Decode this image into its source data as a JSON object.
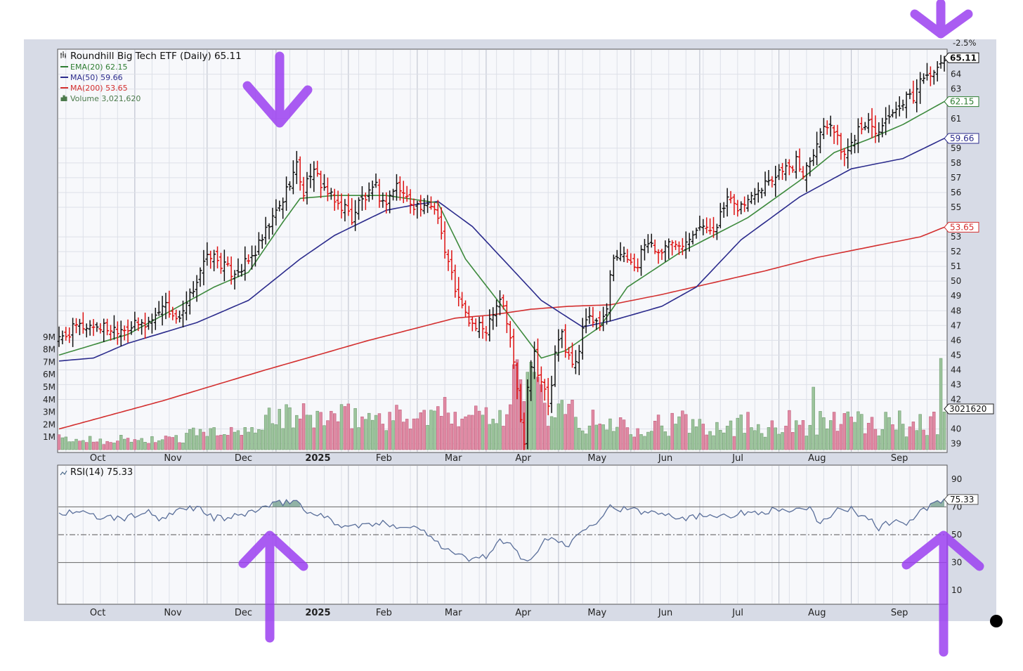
{
  "chart_data": [
    {
      "type": "ohlc",
      "title": "Roundhill Big Tech ETF (Daily) 65.11",
      "legend": [
        {
          "name": "EMA(20)",
          "value": "62.15",
          "color": "#2e7d32"
        },
        {
          "name": "MA(50)",
          "value": "59.66",
          "color": "#2b2b8c"
        },
        {
          "name": "MA(200)",
          "value": "53.65",
          "color": "#d32f2f"
        },
        {
          "name": "Volume",
          "value": "3,021,620",
          "color": "#4c7a4c"
        }
      ],
      "pct_label": "-2.5%",
      "x_ticks": [
        "Oct",
        "Nov",
        "Dec",
        "2025",
        "Feb",
        "Mar",
        "Apr",
        "May",
        "Jun",
        "Jul",
        "Aug",
        "Sep"
      ],
      "y_ticks": [
        39,
        40,
        42,
        43,
        44,
        45,
        46,
        47,
        48,
        49,
        50,
        51,
        52,
        53,
        55,
        56,
        57,
        58,
        59,
        61,
        63,
        64
      ],
      "ylim": [
        38.6,
        65.6
      ],
      "volume_ticks": [
        "9M",
        "8M",
        "7M",
        "6M",
        "5M",
        "4M",
        "3M",
        "2M",
        "1M"
      ],
      "volume_max": 10000000,
      "last_labels": {
        "price": "65.11",
        "ema20": "62.15",
        "ma50": "59.66",
        "ma200": "53.65",
        "volume": "3021620"
      },
      "price_close": [
        [
          0,
          46.0
        ],
        [
          5,
          46.9
        ],
        [
          10,
          47.0
        ],
        [
          15,
          46.8
        ],
        [
          20,
          46.9
        ],
        [
          25,
          47.1
        ],
        [
          28,
          47.6
        ],
        [
          30,
          48.6
        ],
        [
          32,
          48.0
        ],
        [
          35,
          47.2
        ],
        [
          38,
          48.9
        ],
        [
          41,
          50.8
        ],
        [
          44,
          51.8
        ],
        [
          47,
          51.2
        ],
        [
          50,
          50.6
        ],
        [
          53,
          50.9
        ],
        [
          56,
          51.6
        ],
        [
          59,
          52.8
        ],
        [
          62,
          54.2
        ],
        [
          65,
          55.5
        ],
        [
          67,
          56.8
        ],
        [
          69,
          57.8
        ],
        [
          71,
          56.0
        ],
        [
          73,
          57.4
        ],
        [
          75,
          57.0
        ],
        [
          77,
          56.3
        ],
        [
          80,
          55.3
        ],
        [
          83,
          55.0
        ],
        [
          85,
          54.2
        ],
        [
          87,
          55.3
        ],
        [
          90,
          55.8
        ],
        [
          92,
          56.3
        ],
        [
          94,
          55.2
        ],
        [
          96,
          55.8
        ],
        [
          98,
          56.5
        ],
        [
          100,
          55.9
        ],
        [
          102,
          55.4
        ],
        [
          104,
          55.1
        ],
        [
          106,
          54.8
        ],
        [
          108,
          55.2
        ],
        [
          110,
          54.6
        ],
        [
          112,
          52.0
        ],
        [
          114,
          50.4
        ],
        [
          116,
          48.7
        ],
        [
          118,
          47.7
        ],
        [
          120,
          47.0
        ],
        [
          122,
          46.8
        ],
        [
          124,
          46.8
        ],
        [
          126,
          48.1
        ],
        [
          128,
          48.9
        ],
        [
          129,
          48.4
        ],
        [
          130,
          47.2
        ],
        [
          131,
          46.0
        ],
        [
          132,
          44.5
        ],
        [
          133,
          42.8
        ],
        [
          134,
          40.5
        ],
        [
          135,
          39.3
        ],
        [
          136,
          43.0
        ],
        [
          137,
          44.5
        ],
        [
          138,
          45.2
        ],
        [
          139,
          44.0
        ],
        [
          141,
          42.5
        ],
        [
          142,
          41.5
        ],
        [
          143,
          43.0
        ],
        [
          144,
          45.0
        ],
        [
          146,
          46.5
        ],
        [
          147,
          45.5
        ],
        [
          149,
          44.2
        ],
        [
          151,
          45.0
        ],
        [
          152,
          47.2
        ],
        [
          154,
          47.8
        ],
        [
          155,
          47.0
        ],
        [
          157,
          47.0
        ],
        [
          159,
          47.8
        ],
        [
          160,
          50.3
        ],
        [
          161,
          51.4
        ],
        [
          162,
          52.0
        ],
        [
          164,
          51.7
        ],
        [
          166,
          51.5
        ],
        [
          168,
          51.0
        ],
        [
          170,
          52.5
        ],
        [
          172,
          52.6
        ],
        [
          174,
          51.8
        ],
        [
          176,
          52.5
        ],
        [
          178,
          52.5
        ],
        [
          180,
          52.7
        ],
        [
          182,
          52.8
        ],
        [
          184,
          53.5
        ],
        [
          186,
          53.9
        ],
        [
          188,
          53.4
        ],
        [
          190,
          53.6
        ],
        [
          192,
          54.4
        ],
        [
          194,
          55.5
        ],
        [
          196,
          55.0
        ],
        [
          198,
          55.1
        ],
        [
          200,
          55.4
        ],
        [
          202,
          56.2
        ],
        [
          204,
          56.5
        ],
        [
          206,
          57.0
        ],
        [
          208,
          57.1
        ],
        [
          210,
          57.8
        ],
        [
          212,
          57.5
        ],
        [
          214,
          58.1
        ],
        [
          216,
          57.3
        ],
        [
          218,
          58.4
        ],
        [
          220,
          59.4
        ],
        [
          222,
          60.6
        ],
        [
          224,
          60.8
        ],
        [
          226,
          59.5
        ],
        [
          228,
          58.5
        ],
        [
          230,
          59.3
        ],
        [
          232,
          60.5
        ],
        [
          234,
          60.8
        ],
        [
          236,
          60.3
        ],
        [
          238,
          60.0
        ],
        [
          240,
          61.2
        ],
        [
          242,
          61.1
        ],
        [
          244,
          61.5
        ],
        [
          246,
          62.3
        ],
        [
          248,
          62.5
        ],
        [
          250,
          63.5
        ],
        [
          252,
          64.3
        ],
        [
          254,
          63.8
        ],
        [
          256,
          64.8
        ],
        [
          257,
          65.11
        ]
      ],
      "ema20": [
        [
          0,
          45.0
        ],
        [
          20,
          46.4
        ],
        [
          45,
          49.6
        ],
        [
          55,
          50.6
        ],
        [
          65,
          54.0
        ],
        [
          70,
          55.6
        ],
        [
          80,
          55.8
        ],
        [
          95,
          55.8
        ],
        [
          110,
          55.3
        ],
        [
          118,
          51.5
        ],
        [
          128,
          48.5
        ],
        [
          140,
          44.8
        ],
        [
          147,
          45.3
        ],
        [
          157,
          46.9
        ],
        [
          165,
          49.6
        ],
        [
          180,
          51.9
        ],
        [
          200,
          54.3
        ],
        [
          215,
          56.8
        ],
        [
          225,
          58.7
        ],
        [
          235,
          59.6
        ],
        [
          245,
          60.6
        ],
        [
          257,
          62.15
        ]
      ],
      "ma50": [
        [
          0,
          44.6
        ],
        [
          10,
          44.8
        ],
        [
          20,
          45.8
        ],
        [
          40,
          47.2
        ],
        [
          55,
          48.7
        ],
        [
          70,
          51.5
        ],
        [
          80,
          53.1
        ],
        [
          95,
          54.8
        ],
        [
          104,
          55.2
        ],
        [
          110,
          55.4
        ],
        [
          120,
          53.7
        ],
        [
          140,
          48.7
        ],
        [
          152,
          46.9
        ],
        [
          160,
          47.3
        ],
        [
          175,
          48.3
        ],
        [
          185,
          49.6
        ],
        [
          198,
          52.8
        ],
        [
          215,
          55.7
        ],
        [
          230,
          57.6
        ],
        [
          245,
          58.3
        ],
        [
          257,
          59.66
        ]
      ],
      "ma200": [
        [
          0,
          40.0
        ],
        [
          30,
          41.9
        ],
        [
          60,
          44.0
        ],
        [
          90,
          46.0
        ],
        [
          115,
          47.5
        ],
        [
          125,
          47.7
        ],
        [
          137,
          48.1
        ],
        [
          148,
          48.3
        ],
        [
          160,
          48.4
        ],
        [
          175,
          49.1
        ],
        [
          190,
          49.9
        ],
        [
          205,
          50.7
        ],
        [
          220,
          51.6
        ],
        [
          235,
          52.3
        ],
        [
          250,
          53.0
        ],
        [
          257,
          53.65
        ]
      ]
    },
    {
      "type": "line",
      "title": "RSI(14) 75.33",
      "y_ticks": [
        10,
        30,
        50,
        70,
        90
      ],
      "ylim": [
        0,
        100
      ],
      "reference_lines": [
        70,
        50,
        30
      ],
      "last_label": "75.33",
      "x_ticks": [
        "Oct",
        "Nov",
        "Dec",
        "2025",
        "Feb",
        "Mar",
        "Apr",
        "May",
        "Jun",
        "Jul",
        "Aug",
        "Sep"
      ],
      "values": [
        [
          0,
          65
        ],
        [
          5,
          67
        ],
        [
          10,
          63
        ],
        [
          15,
          62
        ],
        [
          20,
          62
        ],
        [
          25,
          67
        ],
        [
          30,
          60
        ],
        [
          35,
          68
        ],
        [
          40,
          70
        ],
        [
          45,
          62
        ],
        [
          50,
          62
        ],
        [
          55,
          66
        ],
        [
          60,
          70
        ],
        [
          65,
          73
        ],
        [
          69,
          75
        ],
        [
          72,
          65
        ],
        [
          75,
          66
        ],
        [
          80,
          58
        ],
        [
          85,
          56
        ],
        [
          90,
          57
        ],
        [
          95,
          58
        ],
        [
          100,
          56
        ],
        [
          104,
          55
        ],
        [
          108,
          50
        ],
        [
          112,
          40
        ],
        [
          116,
          35
        ],
        [
          120,
          32
        ],
        [
          124,
          35
        ],
        [
          128,
          45
        ],
        [
          131,
          42
        ],
        [
          134,
          35
        ],
        [
          136,
          30
        ],
        [
          140,
          43
        ],
        [
          143,
          48
        ],
        [
          148,
          42
        ],
        [
          152,
          55
        ],
        [
          156,
          60
        ],
        [
          160,
          70
        ],
        [
          165,
          68
        ],
        [
          170,
          66
        ],
        [
          175,
          67
        ],
        [
          180,
          62
        ],
        [
          185,
          63
        ],
        [
          190,
          65
        ],
        [
          195,
          64
        ],
        [
          200,
          66
        ],
        [
          205,
          67
        ],
        [
          210,
          68
        ],
        [
          215,
          67
        ],
        [
          218,
          68
        ],
        [
          221,
          58
        ],
        [
          225,
          67
        ],
        [
          230,
          68
        ],
        [
          235,
          62
        ],
        [
          238,
          55
        ],
        [
          242,
          60
        ],
        [
          246,
          58
        ],
        [
          250,
          66
        ],
        [
          254,
          72
        ],
        [
          257,
          75.33
        ]
      ]
    }
  ]
}
